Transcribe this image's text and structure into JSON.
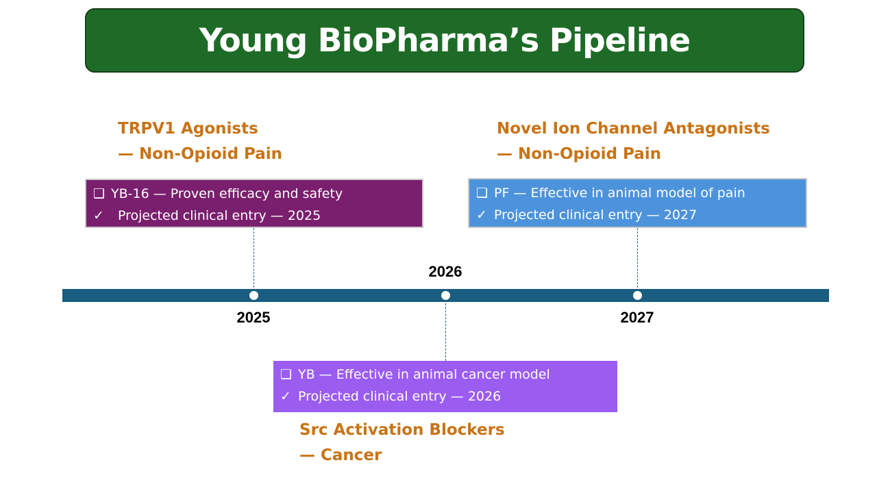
{
  "title": "Young BioPharma’s Pipeline",
  "programs": [
    {
      "heading_line1": "TRPV1 Agonists",
      "heading_line2": "— Non-Opioid Pain",
      "item_symbol": "❑",
      "item_text": "YB-16 — Proven efficacy and safety",
      "check_symbol": "✓",
      "check_text": "Projected clinical entry — 2025",
      "box_color": "#7a1f6e"
    },
    {
      "heading_line1": "Src Activation Blockers",
      "heading_line2": "— Cancer",
      "item_symbol": "❑",
      "item_text": "YB — Effective in animal cancer model",
      "check_symbol": "✓",
      "check_text": "Projected clinical entry — 2026",
      "box_color": "#9b5cf0"
    },
    {
      "heading_line1": "Novel Ion Channel Antagonists",
      "heading_line2": "— Non-Opioid Pain",
      "item_symbol": "❑",
      "item_text": "PF — Effective in animal model of pain",
      "check_symbol": "✓",
      "check_text": "Projected clinical entry — 2027",
      "box_color": "#4d93dc"
    }
  ],
  "timeline": {
    "years": [
      "2025",
      "2026",
      "2027"
    ],
    "bar_color": "#1a5d80"
  },
  "colors": {
    "title_bg": "#1e6b27",
    "heading": "#c97315"
  }
}
